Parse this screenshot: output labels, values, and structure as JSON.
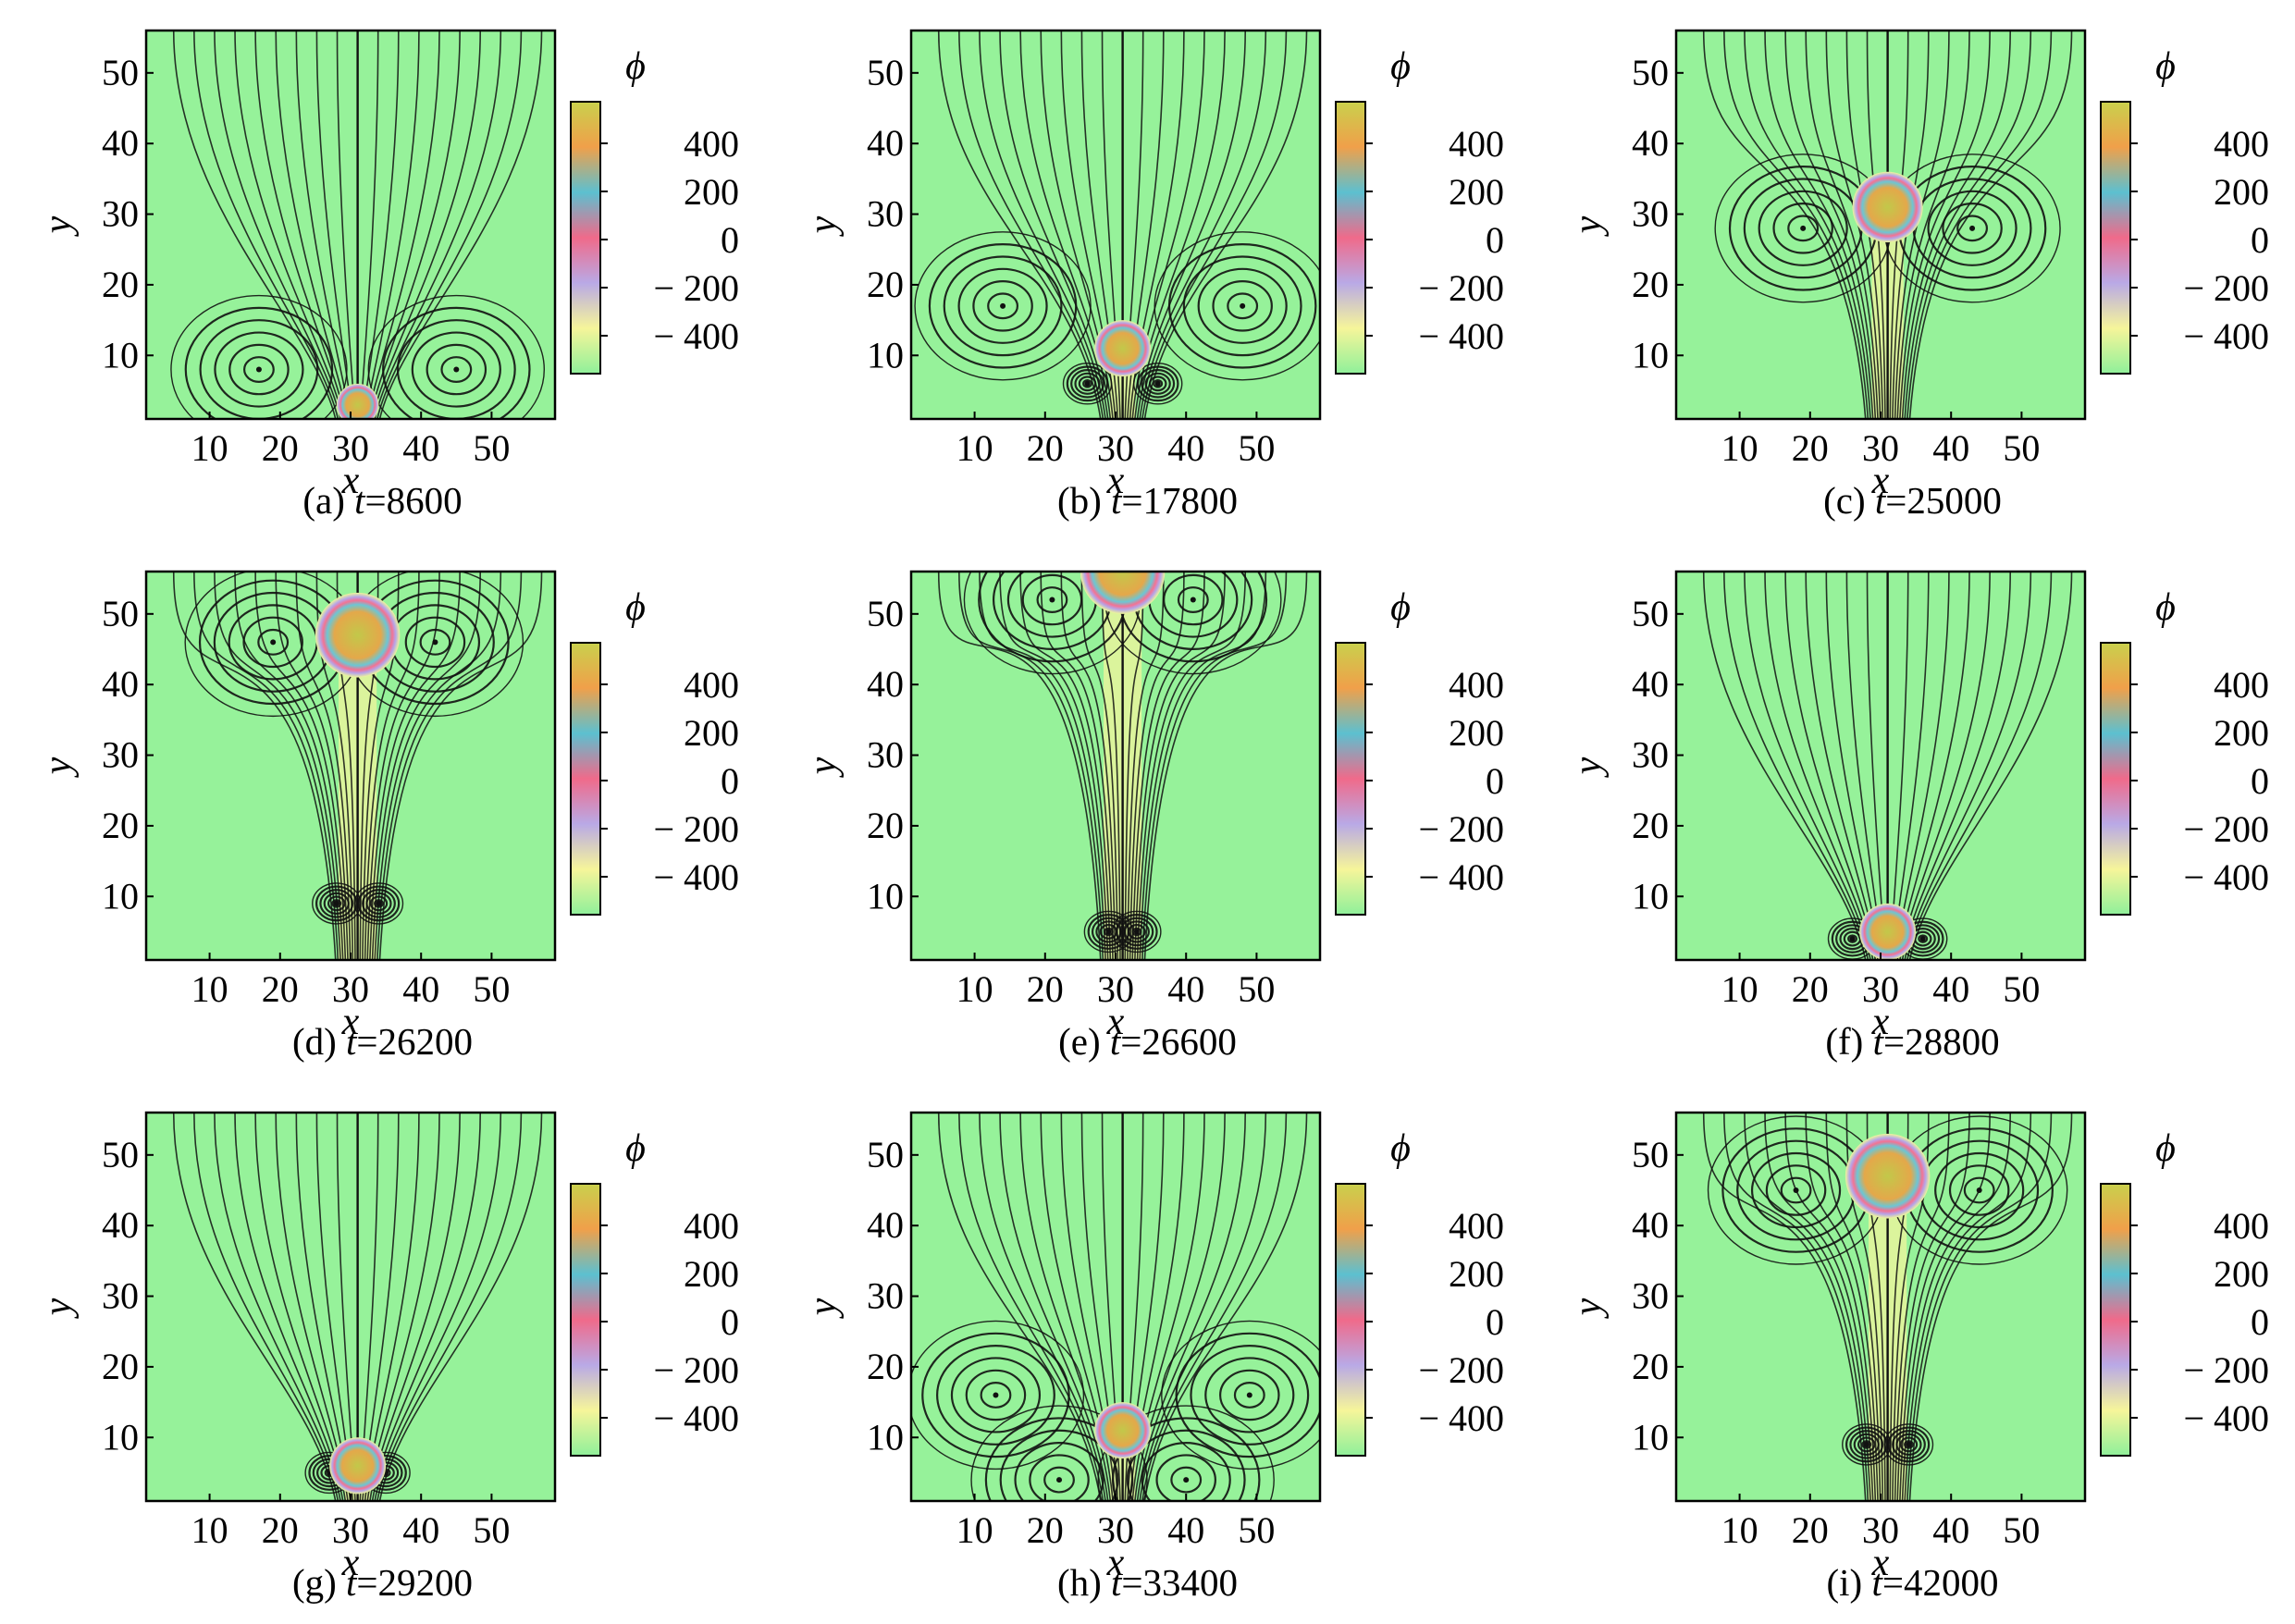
{
  "colorbar": {
    "label": "ϕ",
    "ticks": [
      "400",
      "200",
      "0",
      "− 200",
      "− 400"
    ],
    "colors": [
      "#c9d14c",
      "#f0a04a",
      "#5cc0d0",
      "#f06a8a",
      "#b9a9e6",
      "#f6f59a",
      "#8ff09a"
    ]
  },
  "axes": {
    "xlabel": "x",
    "ylabel": "y",
    "xticks": [
      10,
      20,
      30,
      40,
      50
    ],
    "yticks": [
      10,
      20,
      30,
      40,
      50
    ],
    "xlim": [
      1,
      59
    ],
    "ylim": [
      1,
      56
    ]
  },
  "background_color": "#96f29a",
  "streamline_color": "#111111",
  "panels": [
    {
      "label": "(a)",
      "t_symbol": "t",
      "t_value": "=8600"
    },
    {
      "label": "(b)",
      "t_symbol": "t",
      "t_value": "=17800"
    },
    {
      "label": "(c)",
      "t_symbol": "t",
      "t_value": "=25000"
    },
    {
      "label": "(d)",
      "t_symbol": "t",
      "t_value": "=26200"
    },
    {
      "label": "(e)",
      "t_symbol": "t",
      "t_value": "=26600"
    },
    {
      "label": "(f)",
      "t_symbol": "t",
      "t_value": "=28800"
    },
    {
      "label": "(g)",
      "t_symbol": "t",
      "t_value": "=29200"
    },
    {
      "label": "(h)",
      "t_symbol": "t",
      "t_value": "=33400"
    },
    {
      "label": "(i)",
      "t_symbol": "t",
      "t_value": "=42000"
    }
  ],
  "chart_data": [
    {
      "type": "heatmap",
      "t": 8600,
      "bubble": {
        "x": 31,
        "y": 3,
        "r": 3
      },
      "vortices": [
        {
          "x": 17,
          "y": 8
        },
        {
          "x": 45,
          "y": 8
        }
      ]
    },
    {
      "type": "heatmap",
      "t": 17800,
      "bubble": {
        "x": 31,
        "y": 11,
        "r": 4
      },
      "vortices": [
        {
          "x": 14,
          "y": 17
        },
        {
          "x": 48,
          "y": 17
        },
        {
          "x": 26,
          "y": 6
        },
        {
          "x": 36,
          "y": 6
        }
      ]
    },
    {
      "type": "heatmap",
      "t": 25000,
      "bubble": {
        "x": 31,
        "y": 31,
        "r": 5
      },
      "vortices": [
        {
          "x": 19,
          "y": 28
        },
        {
          "x": 43,
          "y": 28
        }
      ]
    },
    {
      "type": "heatmap",
      "t": 26200,
      "bubble": {
        "x": 31,
        "y": 47,
        "r": 6
      },
      "vortices": [
        {
          "x": 19,
          "y": 46
        },
        {
          "x": 42,
          "y": 46
        },
        {
          "x": 28,
          "y": 9
        },
        {
          "x": 34,
          "y": 9
        }
      ]
    },
    {
      "type": "heatmap",
      "t": 26600,
      "bubble": {
        "x": 31,
        "y": 56,
        "r": 6
      },
      "vortices": [
        {
          "x": 21,
          "y": 52
        },
        {
          "x": 41,
          "y": 52
        },
        {
          "x": 29,
          "y": 5
        },
        {
          "x": 33,
          "y": 5
        }
      ]
    },
    {
      "type": "heatmap",
      "t": 28800,
      "bubble": {
        "x": 31,
        "y": 5,
        "r": 4
      },
      "vortices": [
        {
          "x": 26,
          "y": 4
        },
        {
          "x": 36,
          "y": 4
        }
      ]
    },
    {
      "type": "heatmap",
      "t": 29200,
      "bubble": {
        "x": 31,
        "y": 6,
        "r": 4
      },
      "vortices": [
        {
          "x": 27,
          "y": 5
        },
        {
          "x": 35,
          "y": 5
        }
      ]
    },
    {
      "type": "heatmap",
      "t": 33400,
      "bubble": {
        "x": 31,
        "y": 11,
        "r": 4
      },
      "vortices": [
        {
          "x": 13,
          "y": 16
        },
        {
          "x": 49,
          "y": 16
        },
        {
          "x": 22,
          "y": 4
        },
        {
          "x": 40,
          "y": 4
        }
      ]
    },
    {
      "type": "heatmap",
      "t": 42000,
      "bubble": {
        "x": 31,
        "y": 47,
        "r": 6
      },
      "vortices": [
        {
          "x": 18,
          "y": 45
        },
        {
          "x": 44,
          "y": 45
        },
        {
          "x": 28,
          "y": 9
        },
        {
          "x": 34,
          "y": 9
        }
      ]
    }
  ]
}
